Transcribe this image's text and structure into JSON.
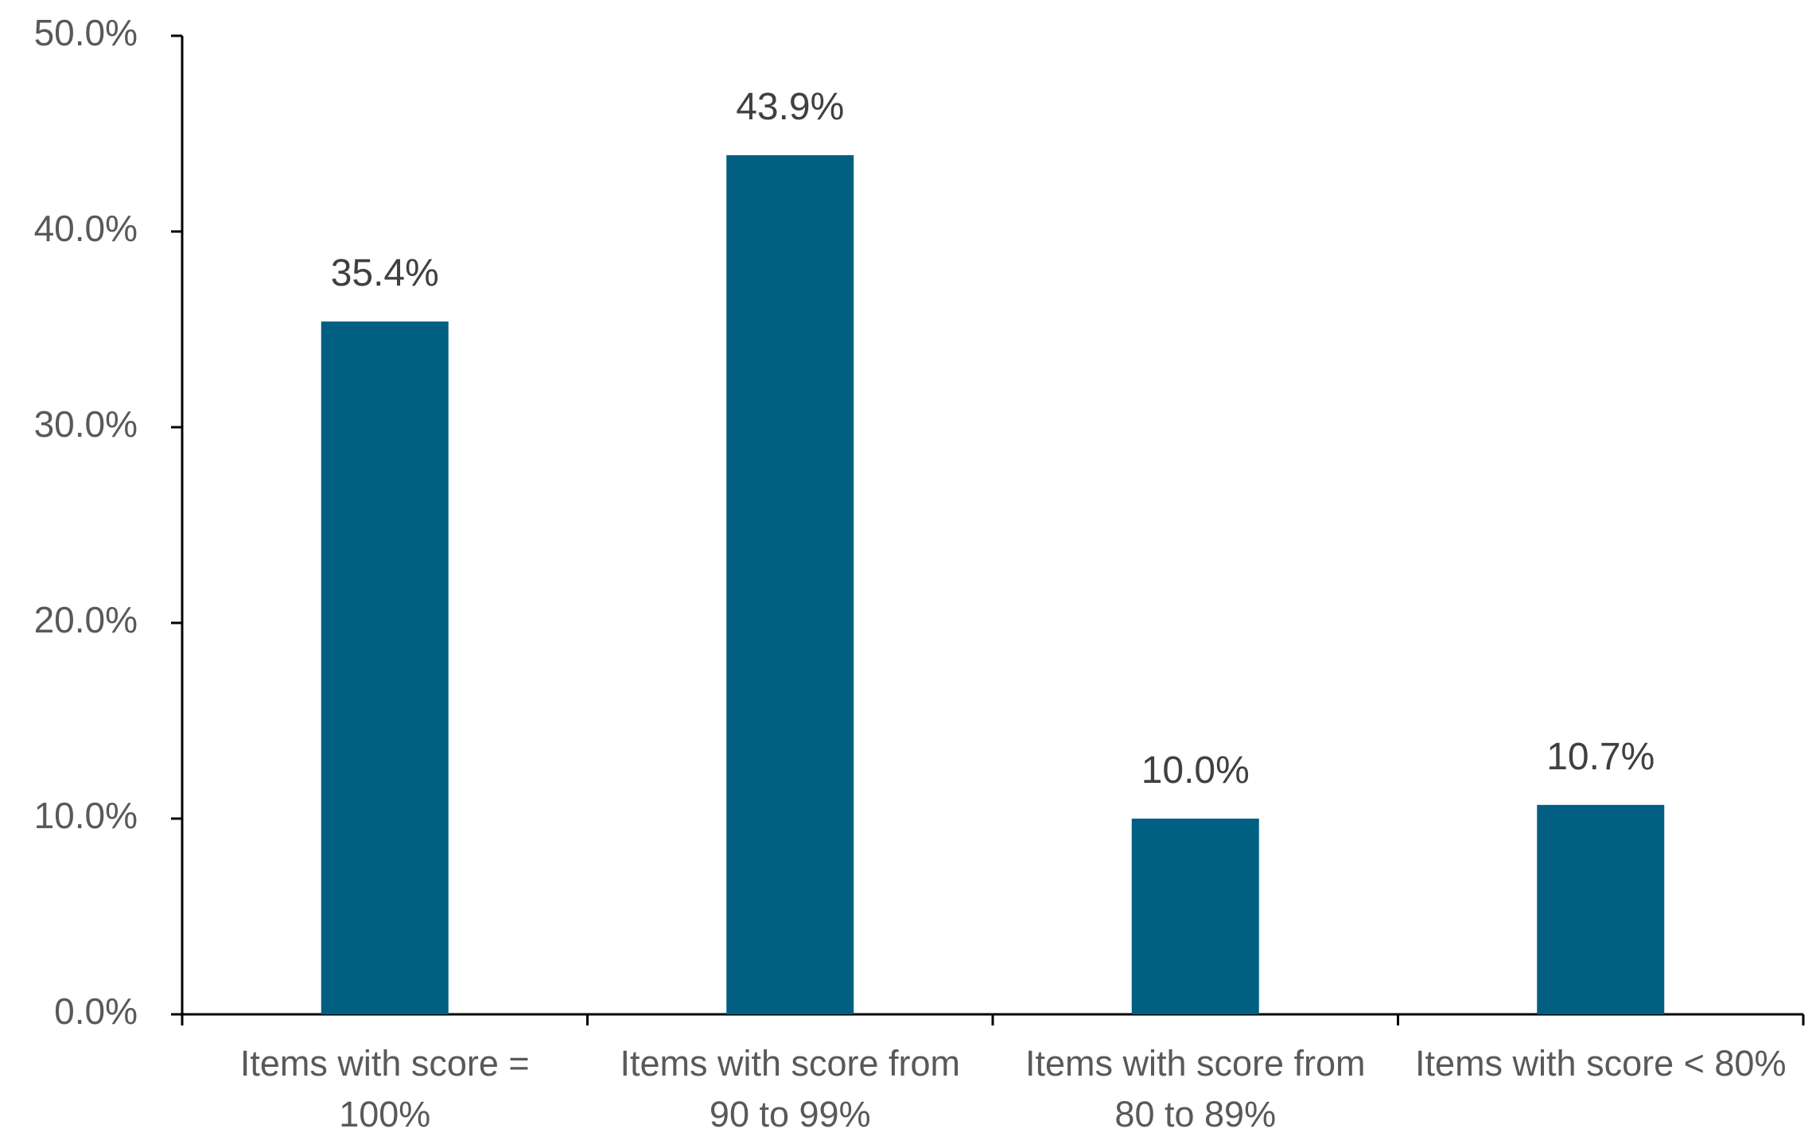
{
  "chart_data": {
    "type": "bar",
    "categories": [
      "Items with score = 100%",
      "Items with score from 90 to 99%",
      "Items with score from 80 to 89%",
      "Items with score < 80%"
    ],
    "values": [
      35.4,
      43.9,
      10.0,
      10.7
    ],
    "value_labels": [
      "35.4%",
      "43.9%",
      "10.0%",
      "10.7%"
    ],
    "color": "#005f83",
    "ylim": [
      0,
      50
    ],
    "yticks": [
      {
        "value": 0,
        "label": "0.0%"
      },
      {
        "value": 10,
        "label": "10.0%"
      },
      {
        "value": 20,
        "label": "20.0%"
      },
      {
        "value": 30,
        "label": "30.0%"
      },
      {
        "value": 40,
        "label": "40.0%"
      },
      {
        "value": 50,
        "label": "50.0%"
      }
    ],
    "grid": false
  }
}
